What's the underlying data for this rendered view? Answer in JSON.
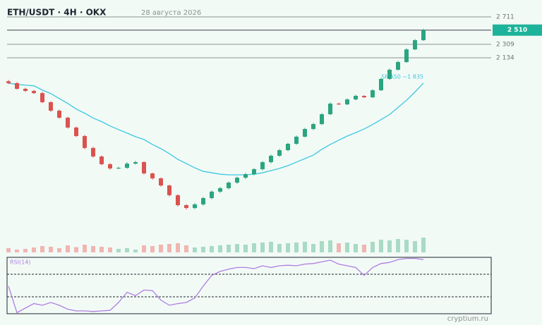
{
  "chart_data": {
    "type": "candlestick",
    "title": "ETH/USDT · 4H · OKX",
    "date": "28 августа 2026",
    "log_scale": true,
    "ylim": [
      767,
      2814
    ],
    "yticks": [
      {
        "value": 2711,
        "label": "2 711"
      },
      {
        "value": 2309,
        "label": "2 309"
      },
      {
        "value": 2134,
        "label": "2 134"
      }
    ],
    "current_price": {
      "value": 2510,
      "label": "2 510"
    },
    "up_color": "#2aa57f",
    "down_color": "#d9534f",
    "open": [
      1860,
      1840,
      1780,
      1758,
      1736,
      1646,
      1566,
      1503,
      1419,
      1350,
      1259,
      1198,
      1145,
      1117,
      1121,
      1149,
      1159,
      1085,
      1054,
      1011,
      955,
      901,
      886,
      905,
      939,
      975,
      995,
      1028,
      1058,
      1080,
      1112,
      1159,
      1203,
      1243,
      1290,
      1345,
      1407,
      1448,
      1534,
      1632,
      1625,
      1673,
      1708,
      1694,
      1765,
      1886,
      1990,
      2082,
      2242,
      2366
    ],
    "high": [
      1875,
      1852,
      1792,
      1770,
      1748,
      1656,
      1578,
      1512,
      1428,
      1360,
      1268,
      1206,
      1152,
      1128,
      1158,
      1168,
      1165,
      1090,
      1060,
      1016,
      960,
      906,
      912,
      945,
      982,
      1002,
      1035,
      1065,
      1088,
      1120,
      1166,
      1212,
      1252,
      1298,
      1354,
      1416,
      1458,
      1545,
      1644,
      1642,
      1684,
      1720,
      1715,
      1776,
      1898,
      2004,
      2096,
      2258,
      2382,
      2530
    ],
    "low": [
      1830,
      1772,
      1748,
      1726,
      1636,
      1556,
      1494,
      1410,
      1342,
      1250,
      1190,
      1138,
      1108,
      1112,
      1114,
      1142,
      1078,
      1046,
      1004,
      948,
      894,
      878,
      880,
      898,
      932,
      968,
      988,
      1020,
      1050,
      1072,
      1104,
      1150,
      1196,
      1236,
      1282,
      1338,
      1398,
      1440,
      1526,
      1618,
      1618,
      1664,
      1686,
      1686,
      1756,
      1876,
      1980,
      2072,
      2232,
      2356
    ],
    "close": [
      1840,
      1780,
      1758,
      1736,
      1646,
      1566,
      1503,
      1419,
      1350,
      1259,
      1198,
      1145,
      1117,
      1121,
      1149,
      1159,
      1085,
      1054,
      1011,
      955,
      901,
      886,
      905,
      939,
      975,
      995,
      1028,
      1058,
      1080,
      1112,
      1159,
      1203,
      1243,
      1290,
      1345,
      1407,
      1448,
      1534,
      1632,
      1625,
      1673,
      1708,
      1694,
      1765,
      1886,
      1990,
      2082,
      2242,
      2366,
      2510
    ],
    "sma": {
      "label": "SMA50 ~1 835",
      "color": "#3cc8e0",
      "values": [
        1840,
        1826,
        1819,
        1812,
        1767,
        1731,
        1681,
        1634,
        1581,
        1543,
        1500,
        1469,
        1432,
        1402,
        1374,
        1345,
        1323,
        1285,
        1254,
        1218,
        1178,
        1149,
        1121,
        1098,
        1089,
        1080,
        1076,
        1076,
        1076,
        1080,
        1089,
        1103,
        1117,
        1135,
        1159,
        1183,
        1208,
        1249,
        1285,
        1318,
        1350,
        1377,
        1407,
        1444,
        1487,
        1531,
        1596,
        1664,
        1748,
        1840
      ]
    },
    "volume": {
      "ylim": [
        0,
        60
      ],
      "up_color": "#a9dac6",
      "down_color": "#f0b6b2",
      "values": [
        12,
        8,
        10,
        14,
        18,
        16,
        12,
        20,
        15,
        22,
        18,
        16,
        14,
        10,
        12,
        8,
        20,
        18,
        22,
        24,
        26,
        20,
        14,
        16,
        18,
        20,
        22,
        24,
        22,
        26,
        28,
        30,
        24,
        26,
        28,
        30,
        24,
        32,
        34,
        26,
        28,
        24,
        22,
        30,
        36,
        34,
        38,
        36,
        32,
        42
      ]
    },
    "rsi": {
      "label": "RSI(14)",
      "color": "#b07ee0",
      "ylim": [
        0,
        100
      ],
      "levels": [
        70,
        30
      ],
      "values": [
        49,
        2,
        10,
        18,
        15,
        20,
        15,
        8,
        5,
        5,
        4,
        5,
        6,
        20,
        38,
        32,
        42,
        41,
        24,
        15,
        18,
        20,
        28,
        49,
        68,
        75,
        79,
        82,
        82,
        80,
        85,
        82,
        85,
        86,
        85,
        88,
        89,
        92,
        95,
        88,
        85,
        82,
        68,
        82,
        89,
        91,
        96,
        98,
        98,
        96
      ]
    },
    "watermark": "cryptium.ru"
  }
}
